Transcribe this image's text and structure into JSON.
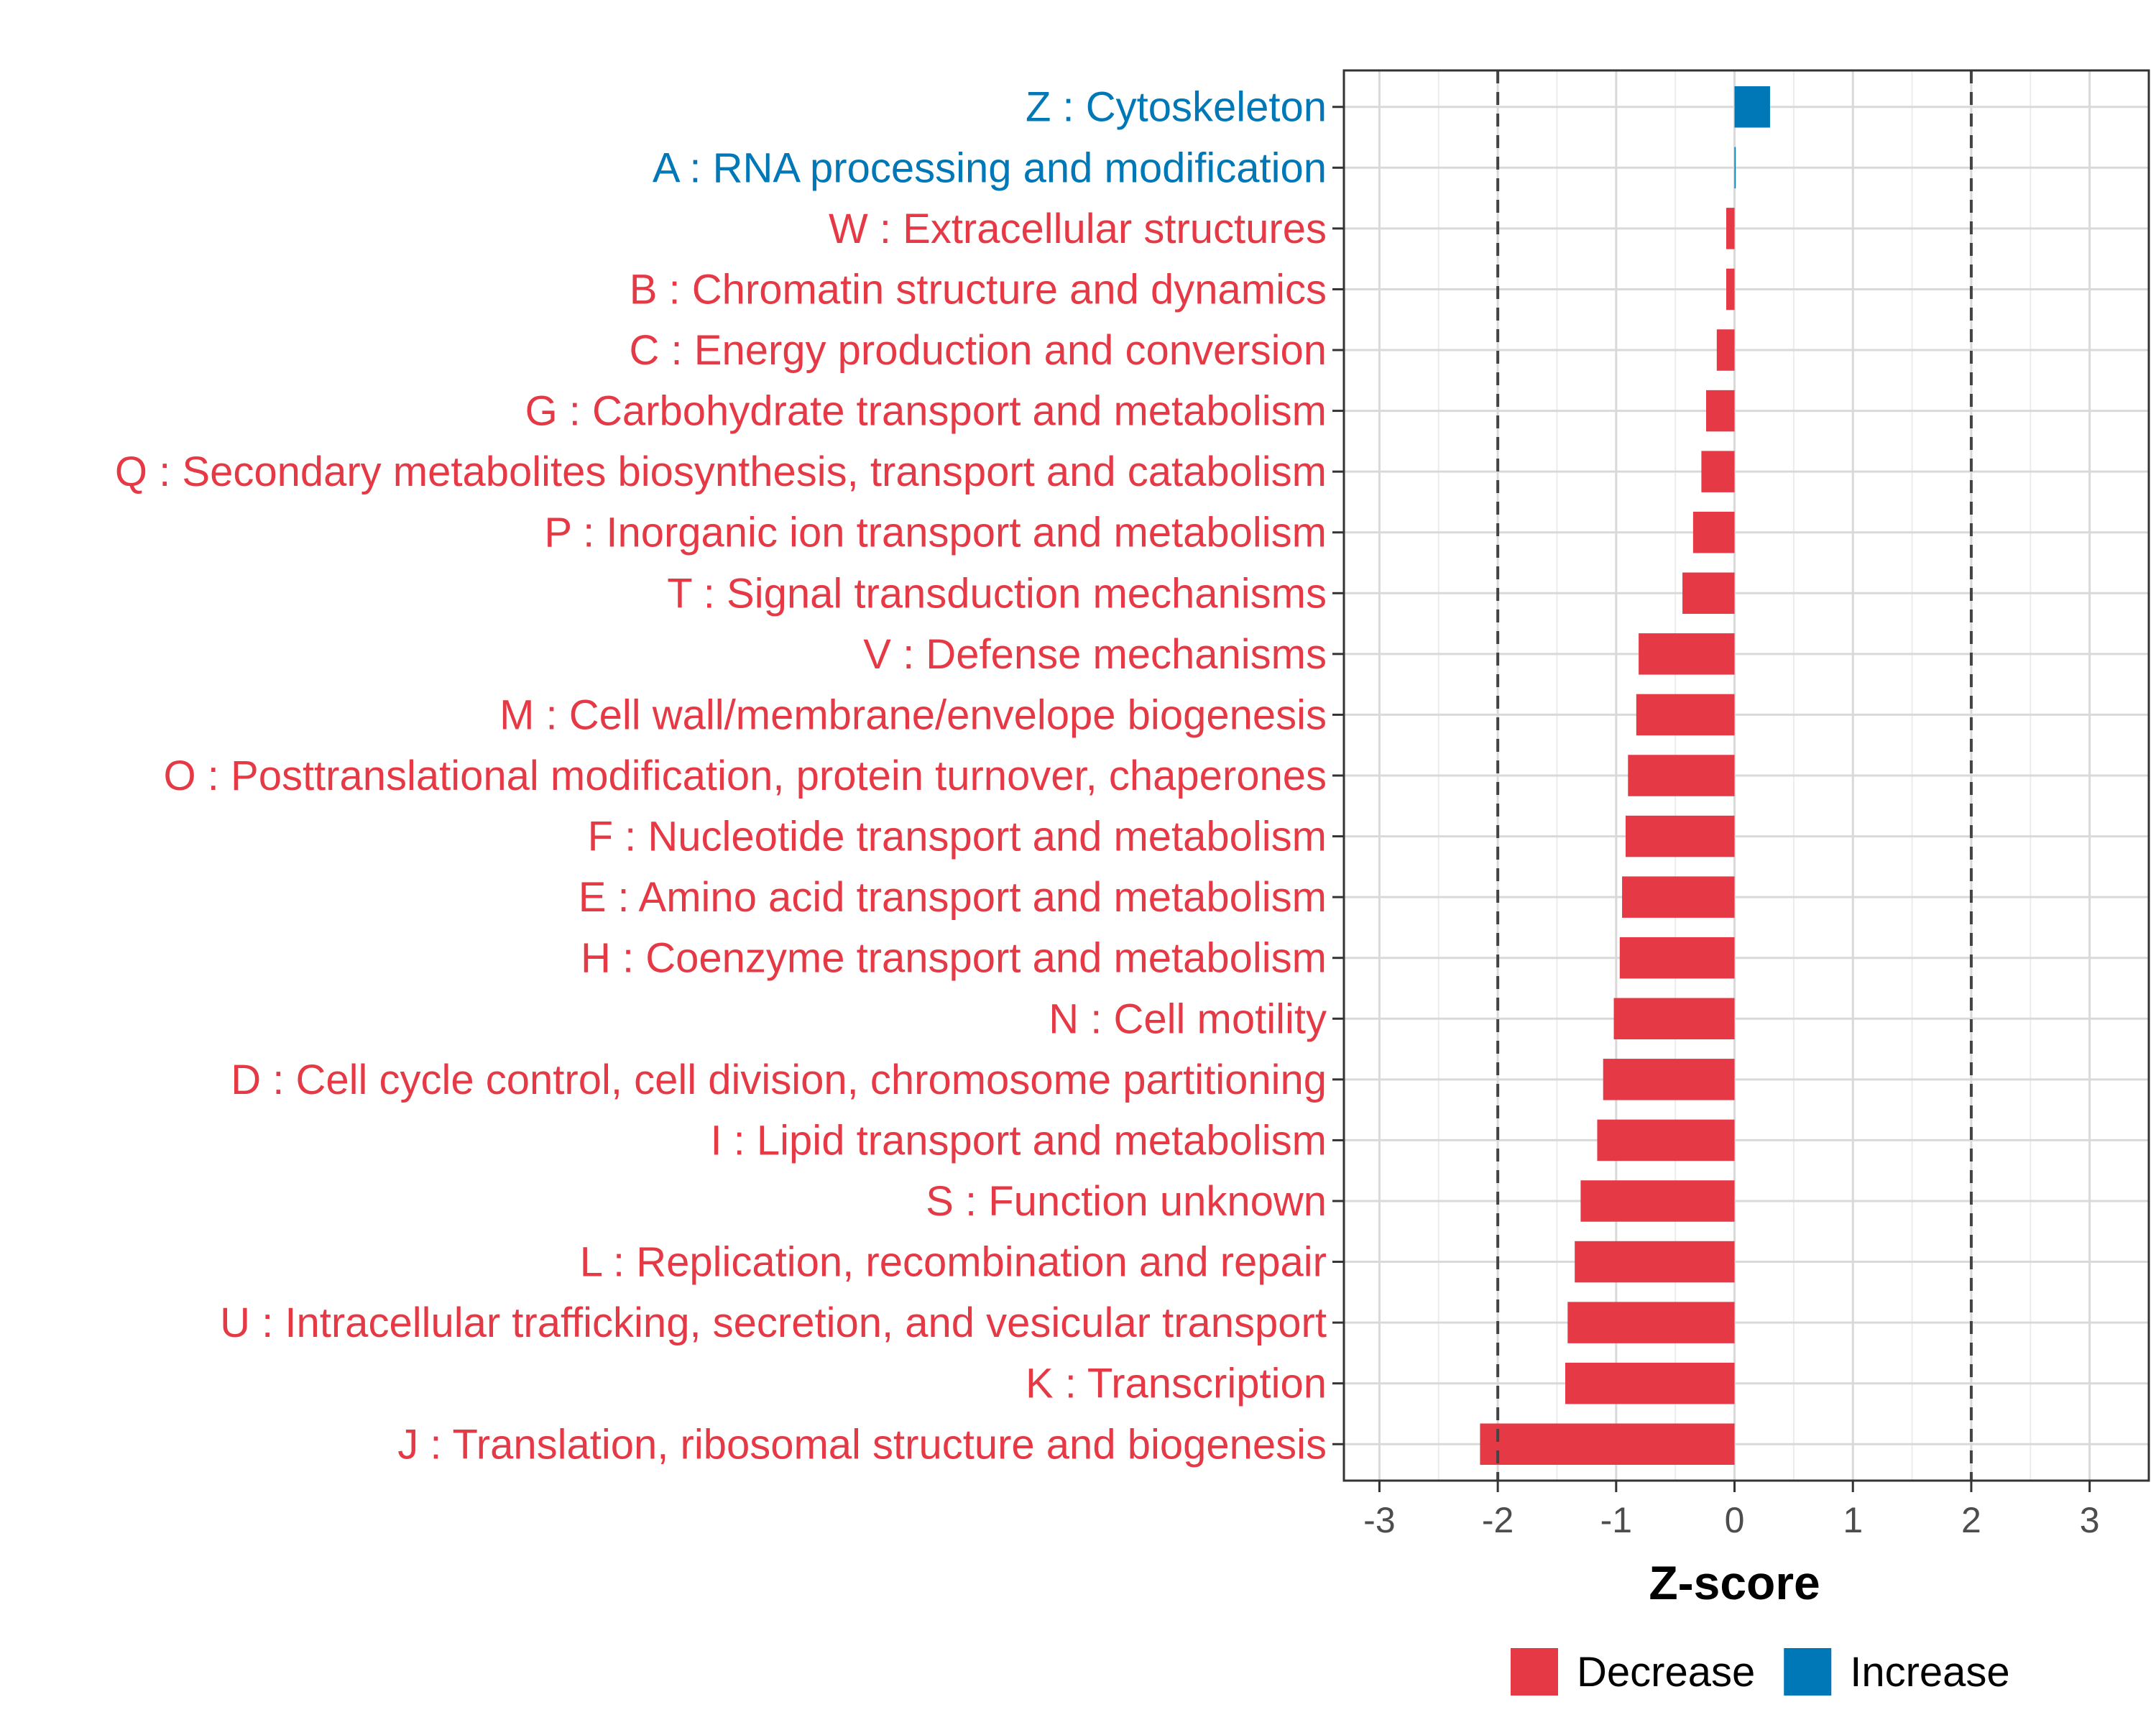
{
  "chart_data": {
    "type": "bar",
    "orientation": "horizontal",
    "xlabel": "Z-score",
    "ylabel": "",
    "xlim": [
      -3.3,
      3.5
    ],
    "xticks": [
      -3,
      -2,
      -1,
      0,
      1,
      2,
      3
    ],
    "reference_lines": [
      -2,
      2
    ],
    "grid": true,
    "legend_position": "bottom",
    "colors": {
      "Decrease": "#e63946",
      "Increase": "#0077b6"
    },
    "legend": [
      {
        "name": "Decrease",
        "color": "#e63946"
      },
      {
        "name": "Increase",
        "color": "#0077b6"
      }
    ],
    "categories": [
      "Z : Cytoskeleton",
      "A : RNA processing and modification",
      "W : Extracellular structures",
      "B : Chromatin structure and dynamics",
      "C : Energy production and conversion",
      "G : Carbohydrate transport and metabolism",
      "Q : Secondary metabolites biosynthesis, transport and catabolism",
      "P : Inorganic ion transport and metabolism",
      "T : Signal transduction mechanisms",
      "V : Defense mechanisms",
      "M : Cell wall/membrane/envelope biogenesis",
      "O : Posttranslational modification, protein turnover, chaperones",
      "F : Nucleotide transport and metabolism",
      "E : Amino acid transport and metabolism",
      "H : Coenzyme transport and metabolism",
      "N : Cell motility",
      "D : Cell cycle control, cell division, chromosome partitioning",
      "I : Lipid transport and metabolism",
      "S : Function unknown",
      "L : Replication, recombination and repair",
      "U : Intracellular trafficking, secretion, and vesicular transport",
      "K : Transcription",
      "J : Translation, ribosomal structure and biogenesis"
    ],
    "values": [
      0.3,
      0.01,
      -0.07,
      -0.07,
      -0.15,
      -0.24,
      -0.28,
      -0.35,
      -0.44,
      -0.81,
      -0.83,
      -0.9,
      -0.92,
      -0.95,
      -0.97,
      -1.02,
      -1.11,
      -1.16,
      -1.3,
      -1.35,
      -1.41,
      -1.43,
      -2.15
    ],
    "groups": [
      "Increase",
      "Increase",
      "Decrease",
      "Decrease",
      "Decrease",
      "Decrease",
      "Decrease",
      "Decrease",
      "Decrease",
      "Decrease",
      "Decrease",
      "Decrease",
      "Decrease",
      "Decrease",
      "Decrease",
      "Decrease",
      "Decrease",
      "Decrease",
      "Decrease",
      "Decrease",
      "Decrease",
      "Decrease",
      "Decrease"
    ]
  }
}
